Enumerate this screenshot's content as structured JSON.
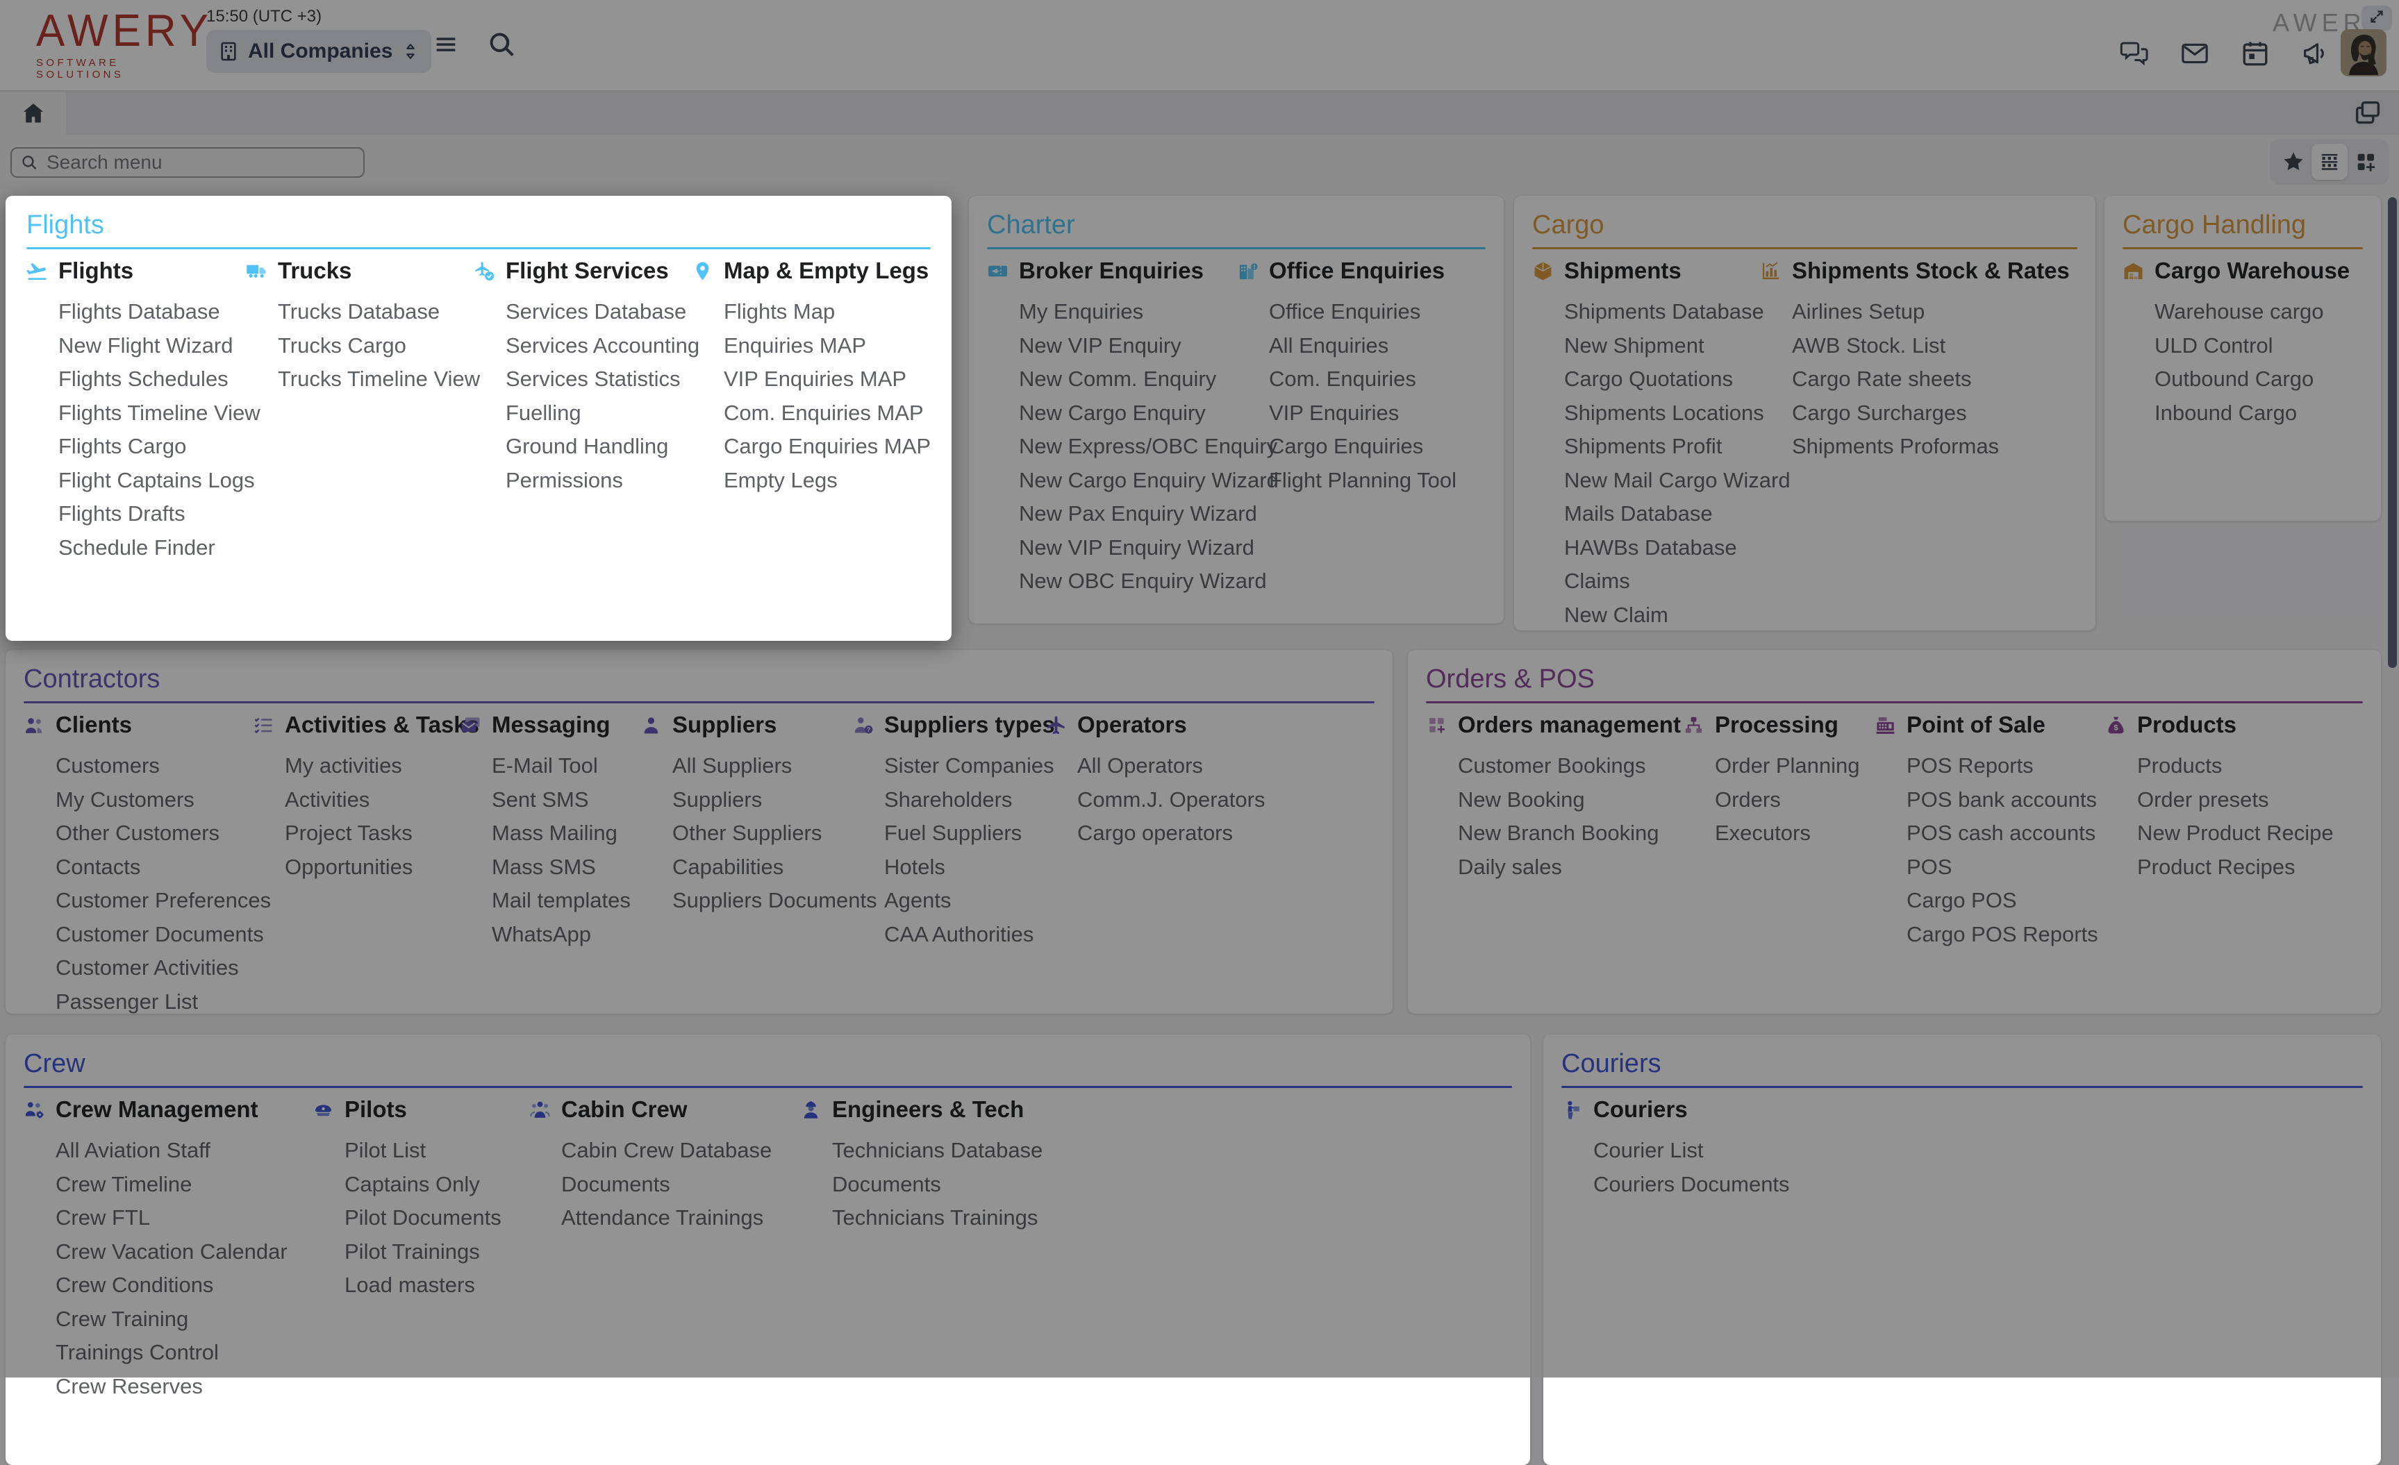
{
  "topbar": {
    "logo_primary": "AWERY",
    "logo_secondary": "SOFTWARE SOLUTIONS",
    "time": "15:50 (UTC +3)",
    "company_selector_label": "All Companies",
    "watermark": "AWERY",
    "action_icons": [
      "chat-icon",
      "mail-icon",
      "calendar-icon",
      "megaphone-icon",
      "avatar"
    ]
  },
  "search": {
    "placeholder": "Search menu"
  },
  "view_toggle_icons": [
    "star-icon",
    "list-view-icon",
    "grid-add-icon"
  ],
  "tab_icons": [
    "home-icon",
    "windows-icon"
  ],
  "colors": {
    "flights_accent": "#4FC3F7",
    "cargo_accent": "#DE9A3C",
    "contractors_accent": "#6455B8",
    "orders_accent": "#8C4799",
    "crew_accent": "#3D52D5",
    "logo_red": "#B5362B"
  },
  "panels": [
    {
      "id": "flights",
      "title": "Flights",
      "accent": "#4FC3F7",
      "columns": [
        {
          "label": "Flights",
          "icon": "plane-takeoff-icon",
          "items": [
            "Flights Database",
            "New Flight Wizard",
            "Flights Schedules",
            "Flights Timeline View",
            "Flights Cargo",
            "Flight Captains Logs",
            "Flights Drafts",
            "Schedule Finder"
          ]
        },
        {
          "label": "Trucks",
          "icon": "truck-icon",
          "items": [
            "Trucks Database",
            "Trucks Cargo",
            "Trucks Timeline View"
          ]
        },
        {
          "label": "Flight Services",
          "icon": "plane-check-icon",
          "items": [
            "Services Database",
            "Services Accounting",
            "Services Statistics",
            "Fuelling",
            "Ground Handling",
            "Permissions"
          ]
        },
        {
          "label": "Map & Empty Legs",
          "icon": "map-pin-icon",
          "items": [
            "Flights Map",
            "Enquiries MAP",
            "VIP Enquiries MAP",
            "Com. Enquiries MAP",
            "Cargo Enquiries MAP",
            "Empty Legs"
          ]
        }
      ]
    },
    {
      "id": "charter",
      "title": "Charter",
      "accent": "#4FC3F7",
      "columns": [
        {
          "label": "Broker Enquiries",
          "icon": "ticket-plane-icon",
          "items": [
            "My Enquiries",
            "New VIP Enquiry",
            "New Comm. Enquiry",
            "New Cargo Enquiry",
            "New Express/OBC Enquiry",
            "New Cargo Enquiry Wizard",
            "New Pax Enquiry Wizard",
            "New VIP Enquiry Wizard",
            "New OBC Enquiry Wizard"
          ]
        },
        {
          "label": "Office Enquiries",
          "icon": "building-alert-icon",
          "items": [
            "Office Enquiries",
            "All Enquiries",
            "Com. Enquiries",
            "VIP Enquiries",
            "Cargo Enquiries",
            "Flight Planning Tool"
          ]
        }
      ]
    },
    {
      "id": "cargo",
      "title": "Cargo",
      "accent": "#DE9A3C",
      "columns": [
        {
          "label": "Shipments",
          "icon": "box-icon",
          "items": [
            "Shipments Database",
            "New Shipment",
            "Cargo Quotations",
            "Shipments Locations",
            "Shipments Profit",
            "New Mail Cargo Wizard",
            "Mails Database",
            "HAWBs Database",
            "Claims",
            "New Claim"
          ]
        },
        {
          "label": "Shipments Stock & Rates",
          "icon": "chart-icon",
          "items": [
            "Airlines Setup",
            "AWB Stock. List",
            "Cargo Rate sheets",
            "Cargo Surcharges",
            "Shipments Proformas"
          ]
        }
      ]
    },
    {
      "id": "cargo-handling",
      "title": "Cargo Handling",
      "accent": "#DE9A3C",
      "columns": [
        {
          "label": "Cargo Warehouse",
          "icon": "warehouse-icon",
          "items": [
            "Warehouse cargo",
            "ULD Control",
            "Outbound Cargo",
            "Inbound Cargo"
          ]
        }
      ]
    },
    {
      "id": "contractors",
      "title": "Contractors",
      "accent": "#6455B8",
      "columns": [
        {
          "label": "Clients",
          "icon": "people-icon",
          "items": [
            "Customers",
            "My Customers",
            "Other Customers",
            "Contacts",
            "Customer Preferences",
            "Customer Documents",
            "Customer Activities",
            "Passenger List"
          ]
        },
        {
          "label": "Activities & Tasks",
          "icon": "checklist-icon",
          "items": [
            "My activities",
            "Activities",
            "Project Tasks",
            "Opportunities"
          ]
        },
        {
          "label": "Messaging",
          "icon": "mail-send-icon",
          "items": [
            "E-Mail Tool",
            "Sent SMS",
            "Mass Mailing",
            "Mass SMS",
            "Mail templates",
            "WhatsApp"
          ]
        },
        {
          "label": "Suppliers",
          "icon": "person-icon",
          "items": [
            "All Suppliers",
            "Suppliers",
            "Other Suppliers",
            "Capabilities",
            "Suppliers Documents"
          ]
        },
        {
          "label": "Suppliers types",
          "icon": "person-question-icon",
          "items": [
            "Sister Companies",
            "Shareholders",
            "Fuel Suppliers",
            "Hotels",
            "Agents",
            "CAA Authorities"
          ]
        },
        {
          "label": "Operators",
          "icon": "plane-icon",
          "items": [
            "All Operators",
            "Comm.J. Operators",
            "Cargo operators"
          ]
        }
      ]
    },
    {
      "id": "orders-pos",
      "title": "Orders & POS",
      "accent": "#8C4799",
      "columns": [
        {
          "label": "Orders management",
          "icon": "grid-plus-icon",
          "items": [
            "Customer Bookings",
            "New Booking",
            "New Branch Booking",
            "Daily sales"
          ]
        },
        {
          "label": "Processing",
          "icon": "flow-icon",
          "items": [
            "Order Planning",
            "Orders",
            "Executors"
          ]
        },
        {
          "label": "Point of Sale",
          "icon": "register-icon",
          "items": [
            "POS Reports",
            "POS bank accounts",
            "POS cash accounts",
            "POS",
            "Cargo POS",
            "Cargo POS Reports"
          ]
        },
        {
          "label": "Products",
          "icon": "dollar-bag-icon",
          "items": [
            "Products",
            "Order presets",
            "New Product Recipe",
            "Product Recipes"
          ]
        }
      ]
    },
    {
      "id": "crew",
      "title": "Crew",
      "accent": "#3D52D5",
      "columns": [
        {
          "label": "Crew Management",
          "icon": "people-gear-icon",
          "items": [
            "All Aviation Staff",
            "Crew Timeline",
            "Crew FTL",
            "Crew Vacation Calendar",
            "Crew Conditions",
            "Crew Training",
            "Trainings Control",
            "Crew Reserves"
          ]
        },
        {
          "label": "Pilots",
          "icon": "pilot-cap-icon",
          "items": [
            "Pilot List",
            "Captains Only",
            "Pilot Documents",
            "Pilot Trainings",
            "Load masters"
          ]
        },
        {
          "label": "Cabin Crew",
          "icon": "cabin-crew-icon",
          "items": [
            "Cabin Crew Database",
            "Documents",
            "Attendance Trainings"
          ]
        },
        {
          "label": "Engineers & Tech",
          "icon": "engineer-icon",
          "items": [
            "Technicians Database",
            "Documents",
            "Technicians Trainings"
          ]
        }
      ]
    },
    {
      "id": "couriers",
      "title": "Couriers",
      "accent": "#3D52D5",
      "columns": [
        {
          "label": "Couriers",
          "icon": "courier-icon",
          "items": [
            "Courier List",
            "Couriers Documents"
          ]
        }
      ]
    }
  ]
}
